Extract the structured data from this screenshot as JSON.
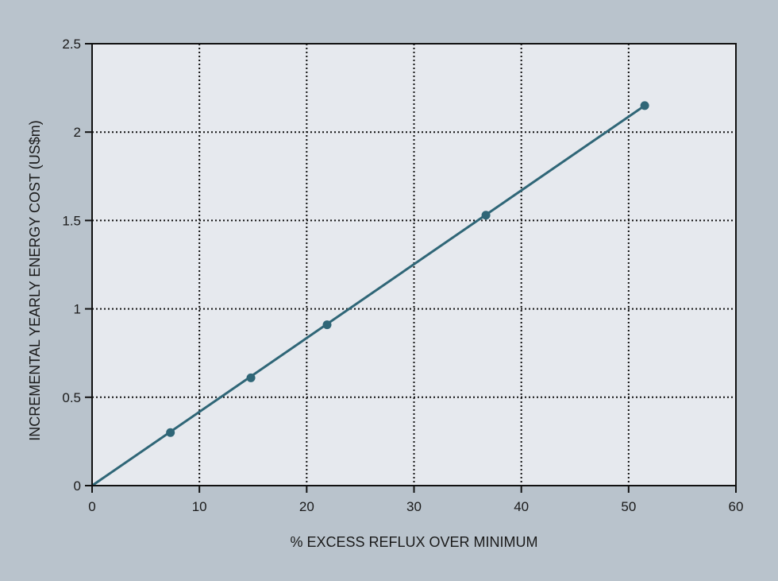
{
  "chart_data": {
    "type": "line",
    "title": "",
    "xlabel": "% EXCESS REFLUX OVER MINIMUM",
    "ylabel": "INCREMENTAL YEARLY ENERGY COST (US$m)",
    "xlim": [
      0,
      60
    ],
    "ylim": [
      0,
      2.5
    ],
    "xticks": [
      0,
      10,
      20,
      30,
      40,
      50,
      60
    ],
    "xtick_labels": [
      "0",
      "10",
      "20",
      "30",
      "40",
      "50",
      "60"
    ],
    "yticks": [
      0,
      0.5,
      1,
      1.5,
      2,
      2.5
    ],
    "ytick_labels": [
      "0",
      "0.5",
      "1",
      "1.5",
      "2",
      "2.5"
    ],
    "grid": true,
    "grid_style": "dotted",
    "series": [
      {
        "points": [
          {
            "x": 7.3,
            "y": 0.3
          },
          {
            "x": 14.8,
            "y": 0.61
          },
          {
            "x": 21.9,
            "y": 0.91
          },
          {
            "x": 36.7,
            "y": 1.53
          },
          {
            "x": 51.5,
            "y": 2.15
          }
        ],
        "line": [
          {
            "x": 0,
            "y": 0
          },
          {
            "x": 51.5,
            "y": 2.15
          }
        ]
      }
    ],
    "colors": {
      "background": "#b9c3cc",
      "plot_background": "#e6e9ee",
      "series": "#2f6677",
      "grid": "#111111",
      "axis": "#111111"
    }
  }
}
